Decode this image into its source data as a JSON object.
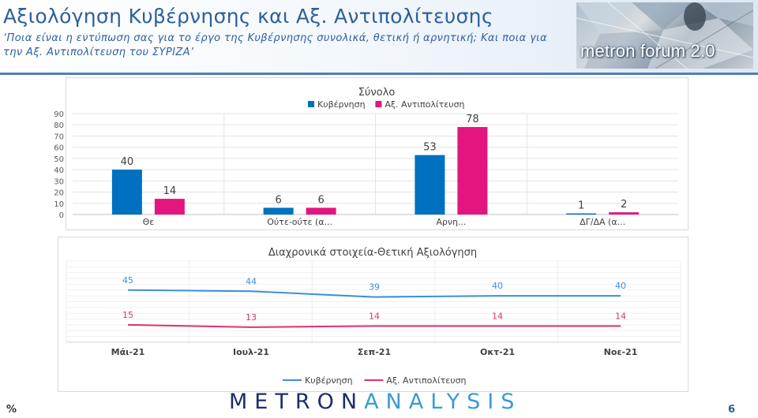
{
  "header": {
    "title": "Αξιολόγηση Κυβέρνησης και Αξ. Αντιπολίτευσης",
    "subtitle": "‘Ποια είναι η εντύπωση σας για το έργο της Κυβέρνησης συνολικά, θετική ή αρνητική; Και ποια για την Αξ. Αντιπολίτευση του ΣΥΡΙΖΑ’",
    "logo_text": "metron forum 2.0"
  },
  "footer": {
    "logo_part1": "METRON",
    "logo_part2": "ANALYSIS",
    "percent_symbol": "%",
    "page_number": "6"
  },
  "colors": {
    "government": "#0070c0",
    "opposition": "#e3157f",
    "gov_line": "#3a8fd9",
    "opp_line": "#e0306f"
  },
  "chart_data": [
    {
      "type": "bar",
      "title": "Σύνολο",
      "categories": [
        "Θε",
        "Ούτε-ούτε (α...",
        "Αρνη...",
        "ΔΓ/ΔΑ (α..."
      ],
      "series": [
        {
          "name": "Κυβέρνηση",
          "values": [
            40,
            6,
            53,
            1
          ]
        },
        {
          "name": "Αξ. Αντιπολίτευση",
          "values": [
            14,
            6,
            78,
            2
          ]
        }
      ],
      "yticks": [
        "0",
        "10",
        "20",
        "30",
        "40",
        "50",
        "60",
        "70",
        "80",
        "90"
      ],
      "ylim": [
        0,
        90
      ],
      "grid": true,
      "legend": "top"
    },
    {
      "type": "line",
      "title": "Διαχρονικά στοιχεία-Θετική Αξιολόγηση",
      "categories": [
        "Μάι-21",
        "Ιουλ-21",
        "Σεπ-21",
        "Οκτ-21",
        "Νοε-21"
      ],
      "series": [
        {
          "name": "Κυβέρνηση",
          "values": [
            45,
            44,
            39,
            40,
            40
          ]
        },
        {
          "name": "Αξ. Αντιπολίτευση",
          "values": [
            15,
            13,
            14,
            14,
            14
          ]
        }
      ],
      "ylim": [
        0,
        70
      ],
      "grid": true,
      "legend": "bottom"
    }
  ]
}
